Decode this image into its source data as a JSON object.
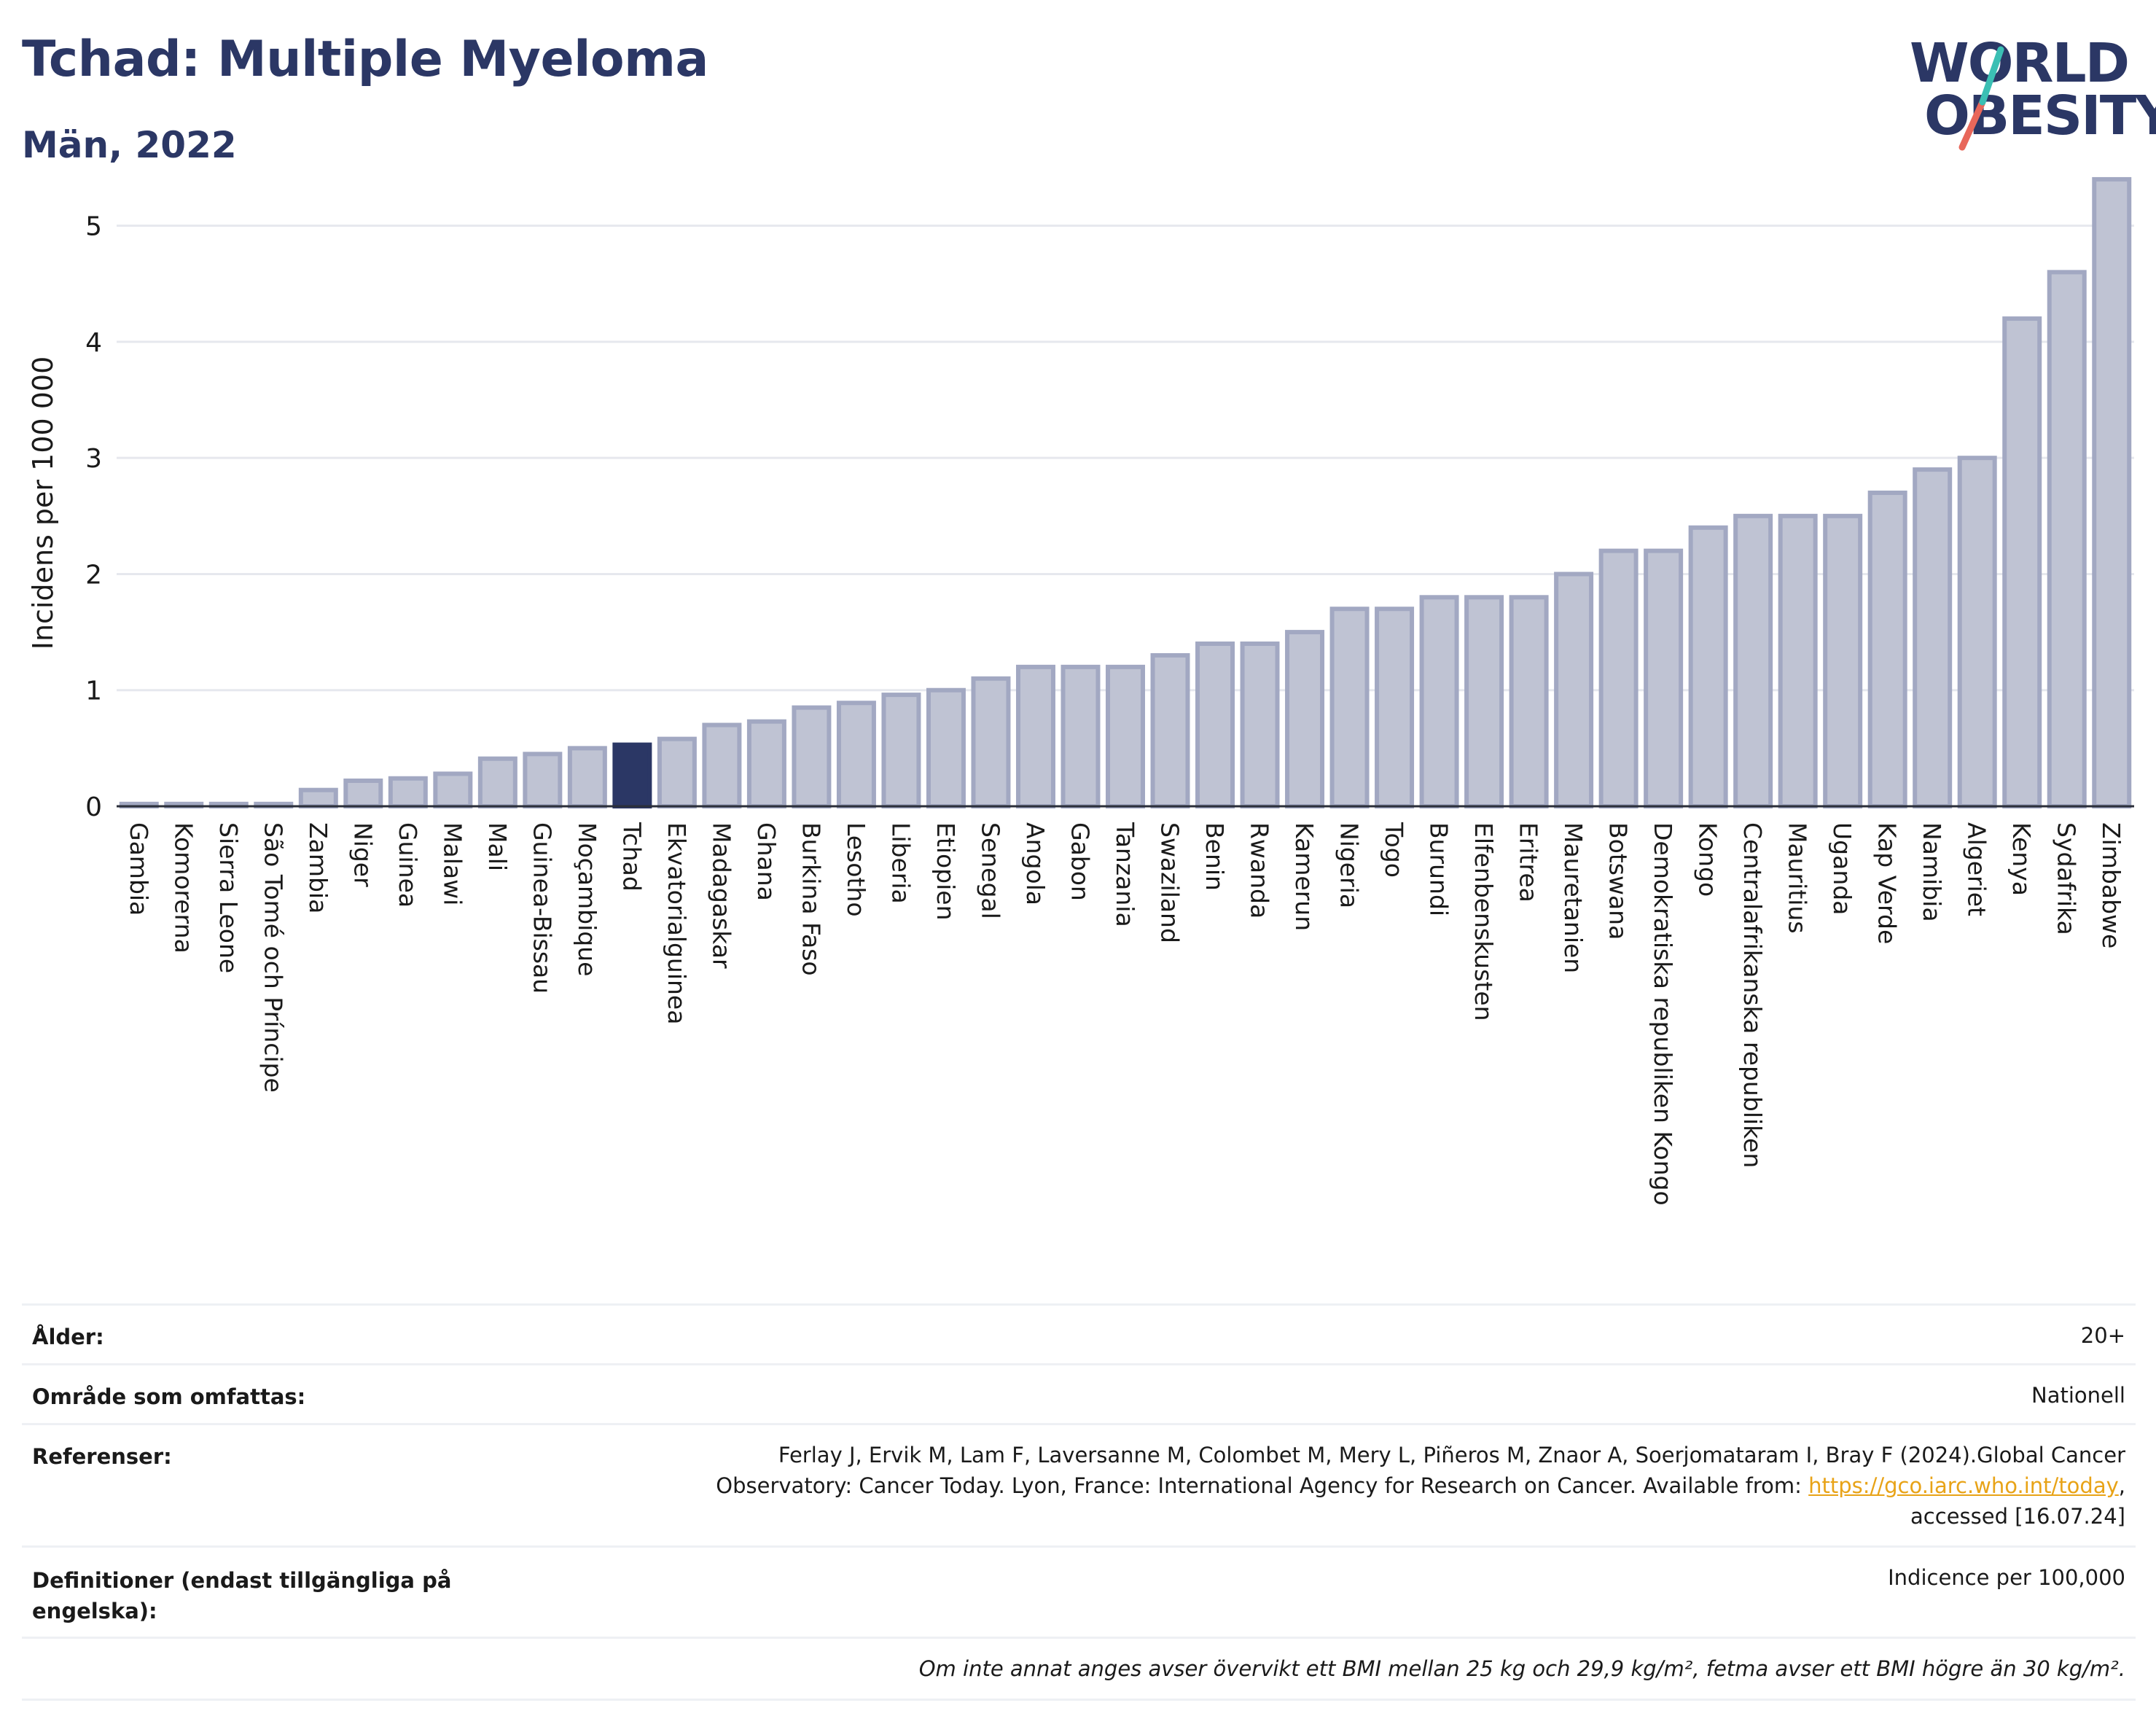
{
  "header": {
    "title": "Tchad: Multiple Myeloma",
    "subtitle": "Män, 2022"
  },
  "logo": {
    "line1": "WORLD",
    "line2": "OBESITY",
    "brand_color": "#2b3765",
    "slash_colors": [
      "#e8675a",
      "#3bbfb4"
    ]
  },
  "chart_data": {
    "type": "bar",
    "title": "Tchad: Multiple Myeloma",
    "subtitle": "Män, 2022",
    "xlabel": "",
    "ylabel": "Incidens per 100 000",
    "ylim": [
      0,
      5.5
    ],
    "yticks": [
      0,
      1,
      2,
      3,
      4,
      5
    ],
    "grid": true,
    "highlight": "Tchad",
    "highlight_color": "#2b3765",
    "bar_color": "#bfc3d3",
    "bar_edge_color": "#a2a8c2",
    "categories": [
      "Gambia",
      "Komorerna",
      "Sierra Leone",
      "São Tomé och Príncipe",
      "Zambia",
      "Niger",
      "Guinea",
      "Malawi",
      "Mali",
      "Guinea-Bissau",
      "Moçambique",
      "Tchad",
      "Ekvatorialguinea",
      "Madagaskar",
      "Ghana",
      "Burkina Faso",
      "Lesotho",
      "Liberia",
      "Etiopien",
      "Senegal",
      "Angola",
      "Gabon",
      "Tanzania",
      "Swaziland",
      "Benin",
      "Rwanda",
      "Kamerun",
      "Nigeria",
      "Togo",
      "Burundi",
      "Elfenbenskusten",
      "Eritrea",
      "Mauretanien",
      "Botswana",
      "Demokratiska republiken Kongo",
      "Kongo",
      "Centralafrikanska republiken",
      "Mauritius",
      "Uganda",
      "Kap Verde",
      "Namibia",
      "Algeriet",
      "Kenya",
      "Sydafrika",
      "Zimbabwe"
    ],
    "values": [
      0.02,
      0.02,
      0.02,
      0.02,
      0.14,
      0.22,
      0.24,
      0.28,
      0.41,
      0.45,
      0.5,
      0.53,
      0.58,
      0.7,
      0.73,
      0.85,
      0.89,
      0.96,
      1.0,
      1.1,
      1.2,
      1.2,
      1.2,
      1.3,
      1.4,
      1.4,
      1.5,
      1.7,
      1.7,
      1.8,
      1.8,
      1.8,
      2.0,
      2.2,
      2.2,
      2.4,
      2.5,
      2.5,
      2.5,
      2.7,
      2.9,
      3.0,
      4.2,
      4.6,
      5.4
    ]
  },
  "meta": {
    "rows": [
      {
        "label": "Ålder:",
        "value": "20+"
      },
      {
        "label": "Område som omfattas:",
        "value": "Nationell"
      },
      {
        "label": "Referenser:",
        "value_line1": "Ferlay J, Ervik M, Lam F, Laversanne M, Colombet M, Mery L, Piñeros M, Znaor A, Soerjomataram I, Bray F (2024).Global Cancer",
        "value_line2_pre": "Observatory: Cancer Today. Lyon, France: International Agency for Research on Cancer. Available from: ",
        "value_link": "https://gco.iarc.who.int/today",
        "value_line2_post": ",",
        "value_line3": "accessed [16.07.24]"
      },
      {
        "label": "Definitioner (endast tillgängliga på engelska):",
        "value": "Indicence per 100,000"
      }
    ],
    "note": "Om inte annat anges avser övervikt ett BMI mellan 25 kg och 29,9 kg/m², fetma avser ett BMI högre än 30 kg/m²."
  }
}
